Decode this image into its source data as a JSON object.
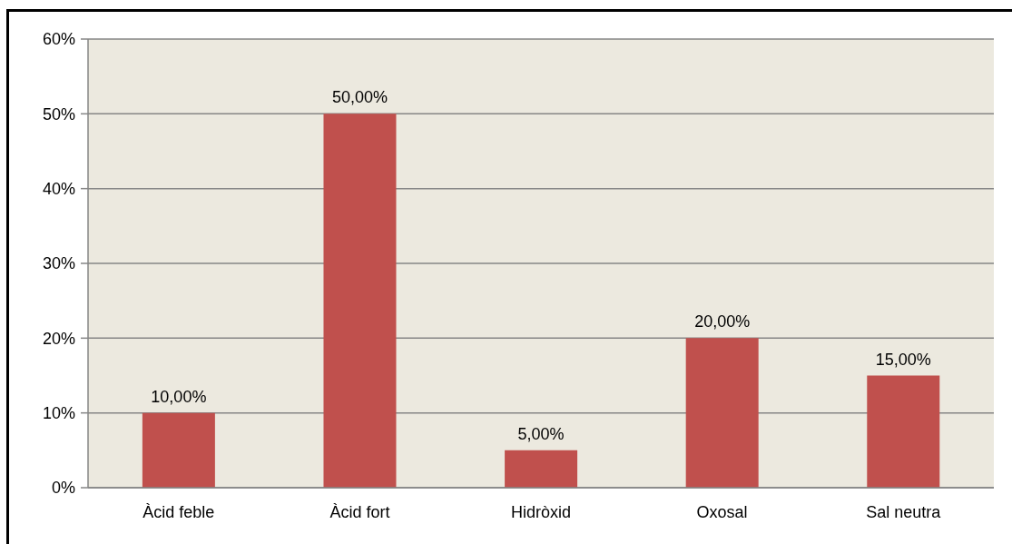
{
  "chart_data": {
    "type": "bar",
    "categories": [
      "Àcid feble",
      "Àcid fort",
      "Hidròxid",
      "Oxosal",
      "Sal neutra"
    ],
    "values": [
      10,
      50,
      5,
      20,
      15
    ],
    "color": "#c0504d",
    "value_labels": [
      "10,00%",
      "50,00%",
      "5,00%",
      "20,00%",
      "15,00%"
    ],
    "ylim": [
      0,
      60
    ],
    "yticks": [
      {
        "value": 0,
        "label": "0%"
      },
      {
        "value": 10,
        "label": "10%"
      },
      {
        "value": 20,
        "label": "20%"
      },
      {
        "value": 30,
        "label": "30%"
      },
      {
        "value": 40,
        "label": "40%"
      },
      {
        "value": 50,
        "label": "50%"
      },
      {
        "value": 60,
        "label": "60%"
      }
    ],
    "grid": "y"
  }
}
